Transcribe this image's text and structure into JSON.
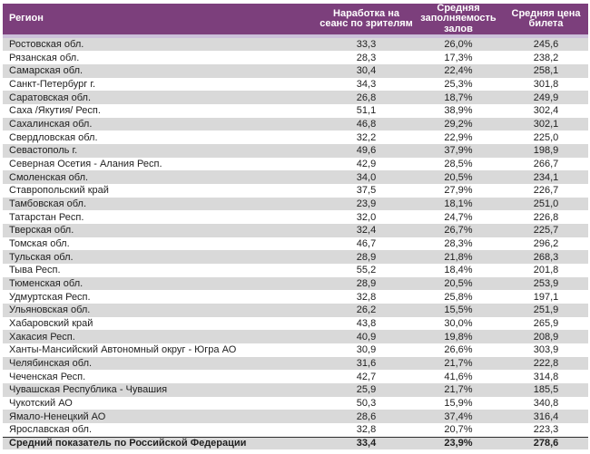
{
  "chart_data": {
    "type": "table",
    "columns": [
      "Регион",
      "Наработка на сеанс по зрителям",
      "Средняя заполняемость залов",
      "Средняя цена билета"
    ],
    "rows": [
      [
        "Ростовская обл.",
        "33,3",
        "26,0%",
        "245,6"
      ],
      [
        "Рязанская обл.",
        "28,3",
        "17,3%",
        "238,2"
      ],
      [
        "Самарская обл.",
        "30,4",
        "22,4%",
        "258,1"
      ],
      [
        "Санкт-Петербург г.",
        "34,3",
        "25,3%",
        "301,8"
      ],
      [
        "Саратовская обл.",
        "26,8",
        "18,7%",
        "249,9"
      ],
      [
        "Саха /Якутия/ Респ.",
        "51,1",
        "38,9%",
        "302,4"
      ],
      [
        "Сахалинская обл.",
        "46,8",
        "29,2%",
        "302,1"
      ],
      [
        "Свердловская обл.",
        "32,2",
        "22,9%",
        "225,0"
      ],
      [
        "Севастополь г.",
        "49,6",
        "37,9%",
        "198,9"
      ],
      [
        "Северная Осетия - Алания Респ.",
        "42,9",
        "28,5%",
        "266,7"
      ],
      [
        "Смоленская обл.",
        "34,0",
        "20,5%",
        "234,1"
      ],
      [
        "Ставропольский край",
        "37,5",
        "27,9%",
        "226,7"
      ],
      [
        "Тамбовская обл.",
        "23,9",
        "18,1%",
        "251,0"
      ],
      [
        "Татарстан Респ.",
        "32,0",
        "24,7%",
        "226,8"
      ],
      [
        "Тверская обл.",
        "32,4",
        "26,7%",
        "225,7"
      ],
      [
        "Томская обл.",
        "46,7",
        "28,3%",
        "296,2"
      ],
      [
        "Тульская обл.",
        "28,9",
        "21,8%",
        "268,3"
      ],
      [
        "Тыва Респ.",
        "55,2",
        "18,4%",
        "201,8"
      ],
      [
        "Тюменская обл.",
        "28,9",
        "20,5%",
        "253,9"
      ],
      [
        "Удмуртская Респ.",
        "32,8",
        "25,8%",
        "197,1"
      ],
      [
        "Ульяновская обл.",
        "26,2",
        "15,5%",
        "251,9"
      ],
      [
        "Хабаровский край",
        "43,8",
        "30,0%",
        "265,9"
      ],
      [
        "Хакасия Респ.",
        "40,9",
        "19,8%",
        "208,9"
      ],
      [
        "Ханты-Мансийский Автономный округ - Югра АО",
        "30,9",
        "26,6%",
        "303,9"
      ],
      [
        "Челябинская обл.",
        "31,6",
        "21,7%",
        "222,8"
      ],
      [
        "Чеченская Респ.",
        "42,7",
        "41,6%",
        "314,8"
      ],
      [
        "Чувашская Республика - Чувашия",
        "25,9",
        "21,7%",
        "185,5"
      ],
      [
        "Чукотский АО",
        "50,3",
        "15,9%",
        "340,8"
      ],
      [
        "Ямало-Ненецкий АО",
        "28,6",
        "37,4%",
        "316,4"
      ],
      [
        "Ярославская обл.",
        "32,8",
        "20,7%",
        "223,3"
      ]
    ],
    "summary": [
      "Средний показатель по Российской Федерации",
      "33,4",
      "23,9%",
      "278,6"
    ],
    "layout": {
      "header_bg": "#7c3f7c",
      "header_text_color": "#ffffff",
      "separator_color": "#ccc0da",
      "alt_row_bg": "#d9d9d9",
      "first_row_shaded": true
    }
  }
}
